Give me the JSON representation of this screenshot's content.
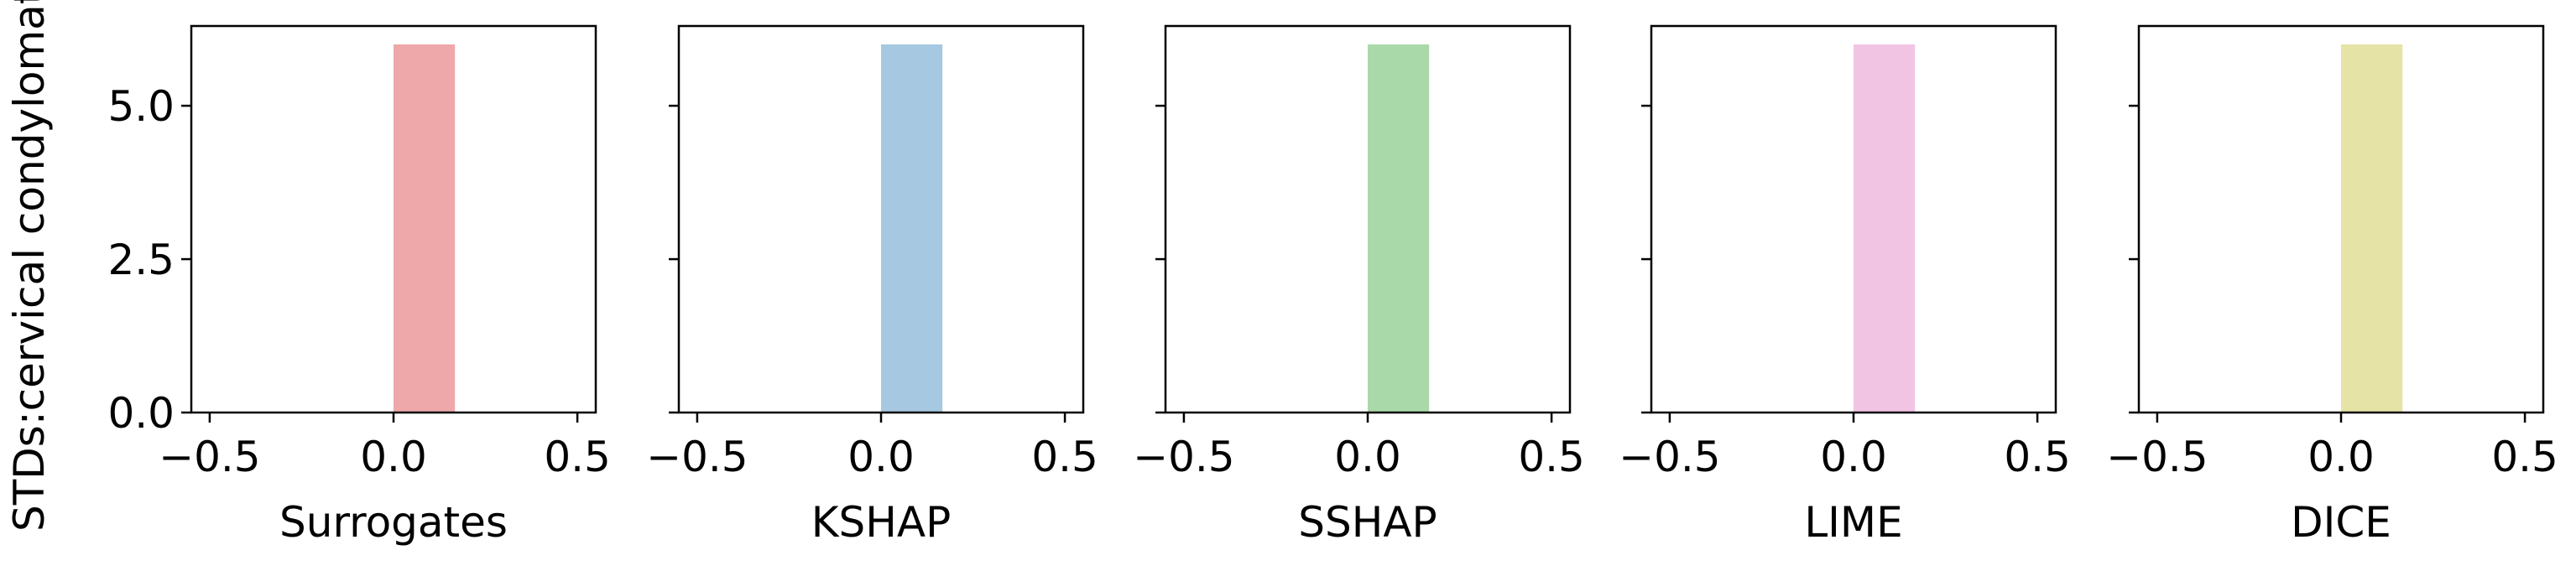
{
  "chart_data": [
    {
      "type": "histogram",
      "ylabel": "STDs:cervical condylomatosis",
      "xlabel": "Surrogates",
      "bins": [
        0,
        0.167
      ],
      "counts": [
        6
      ],
      "color": "#eea8a9",
      "xlim": [
        -0.55,
        0.55
      ],
      "xticks": [
        {
          "value": -0.5,
          "label": "−0.5"
        },
        {
          "value": 0,
          "label": "0.0"
        },
        0.5
      ],
      "ylim": [
        0,
        6.3
      ],
      "yticks": [
        {
          "value": 0,
          "label": "0.0"
        },
        2.5,
        {
          "value": 5,
          "label": "5.0"
        }
      ]
    },
    {
      "type": "histogram",
      "xlabel": "KSHAP",
      "bins": [
        0,
        0.167
      ],
      "counts": [
        6
      ],
      "color": "#a6c8e0",
      "xlim": [
        -0.55,
        0.55
      ],
      "xticks": [
        {
          "value": -0.5,
          "label": "−0.5"
        },
        {
          "value": 0,
          "label": "0.0"
        },
        0.5
      ],
      "ylim": [
        0,
        6.3
      ]
    },
    {
      "type": "histogram",
      "xlabel": "SSHAP",
      "bins": [
        0,
        0.167
      ],
      "counts": [
        6
      ],
      "color": "#aad9a9",
      "xlim": [
        -0.55,
        0.55
      ],
      "xticks": [
        {
          "value": -0.5,
          "label": "−0.5"
        },
        {
          "value": 0,
          "label": "0.0"
        },
        0.5
      ],
      "ylim": [
        0,
        6.3
      ]
    },
    {
      "type": "histogram",
      "xlabel": "LIME",
      "bins": [
        0,
        0.167
      ],
      "counts": [
        6
      ],
      "color": "#f2c4e3",
      "xlim": [
        -0.55,
        0.55
      ],
      "xticks": [
        {
          "value": -0.5,
          "label": "−0.5"
        },
        {
          "value": 0,
          "label": "0.0"
        },
        0.5
      ],
      "ylim": [
        0,
        6.3
      ]
    },
    {
      "type": "histogram",
      "xlabel": "DICE",
      "bins": [
        0,
        0.167
      ],
      "counts": [
        6
      ],
      "color": "#e5e3a6",
      "xlim": [
        -0.55,
        0.55
      ],
      "xticks": [
        {
          "value": -0.5,
          "label": "−0.5"
        },
        {
          "value": 0,
          "label": "0.0"
        },
        0.5
      ],
      "ylim": [
        0,
        6.3
      ]
    }
  ]
}
